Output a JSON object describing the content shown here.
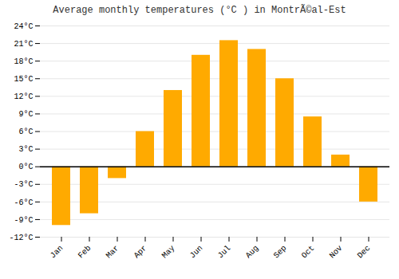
{
  "chart_data": {
    "type": "bar",
    "title": "Average monthly temperatures (°C ) in MontrÃ©al-Est",
    "categories": [
      "Jan",
      "Feb",
      "Mar",
      "Apr",
      "May",
      "Jun",
      "Jul",
      "Aug",
      "Sep",
      "Oct",
      "Nov",
      "Dec"
    ],
    "values": [
      -10,
      -8,
      -2,
      6,
      13,
      19,
      21.5,
      20,
      15,
      8.5,
      2,
      -6
    ],
    "color": "#FFAA00",
    "ylim": [
      -12,
      24
    ],
    "yticks": [
      {
        "value": -12,
        "label": "-12°C"
      },
      {
        "value": -9,
        "label": "-9°C"
      },
      {
        "value": -6,
        "label": "-6°C"
      },
      {
        "value": -3,
        "label": "-3°C"
      },
      {
        "value": 0,
        "label": "0°C"
      },
      {
        "value": 3,
        "label": "3°C"
      },
      {
        "value": 6,
        "label": "6°C"
      },
      {
        "value": 9,
        "label": "9°C"
      },
      {
        "value": 12,
        "label": "12°C"
      },
      {
        "value": 15,
        "label": "15°C"
      },
      {
        "value": 18,
        "label": "18°C"
      },
      {
        "value": 21,
        "label": "21°C"
      },
      {
        "value": 24,
        "label": "24°C"
      }
    ],
    "grid": true
  }
}
